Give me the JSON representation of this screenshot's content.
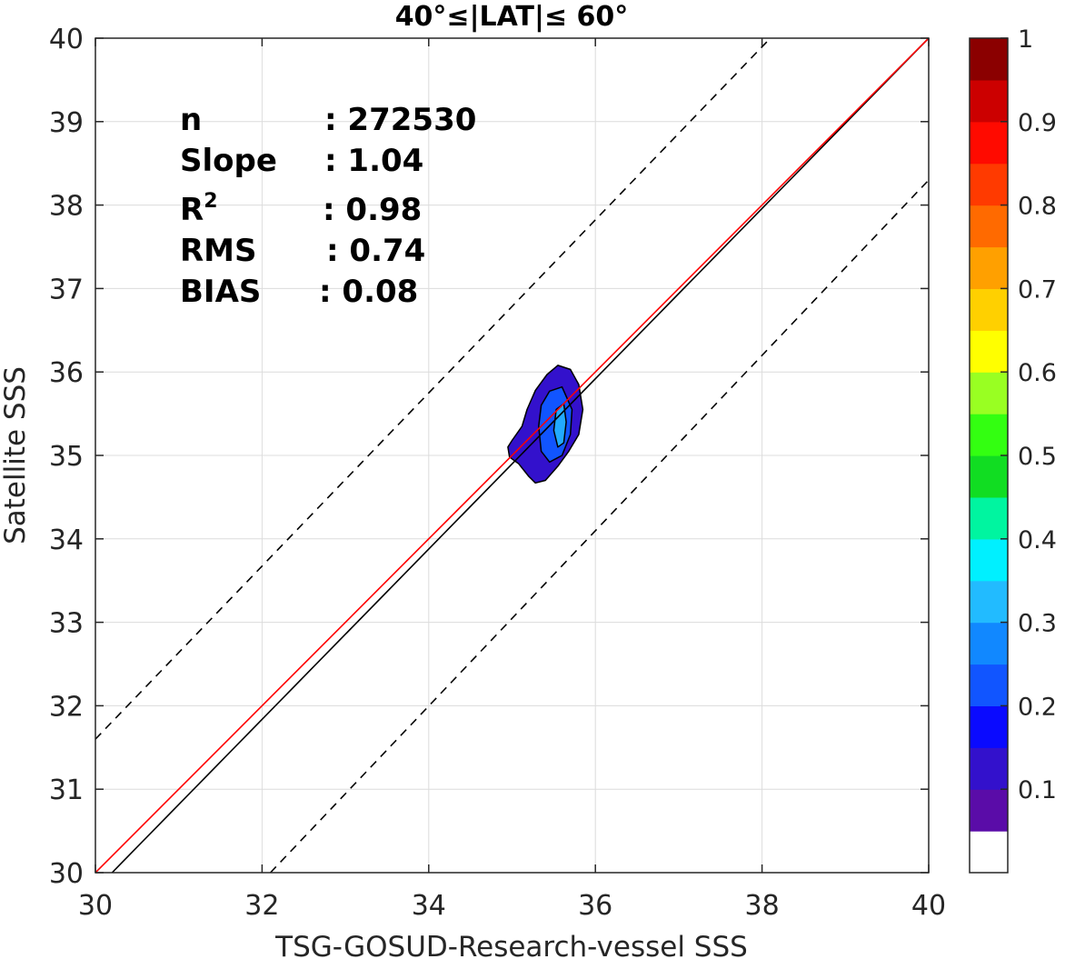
{
  "chart_data": {
    "type": "contour",
    "title": "40°≤|LAT|≤ 60°",
    "xlabel": "TSG-GOSUD-Research-vessel SSS",
    "ylabel": "Satellite SSS",
    "xlim": [
      30,
      40
    ],
    "ylim": [
      30,
      40
    ],
    "xticks": [
      "30",
      "32",
      "34",
      "36",
      "38",
      "40"
    ],
    "yticks": [
      "30",
      "31",
      "32",
      "33",
      "34",
      "35",
      "36",
      "37",
      "38",
      "39",
      "40"
    ],
    "grid": true,
    "stats": [
      {
        "label": "n",
        "value": ": 272530"
      },
      {
        "label": "Slope",
        "value": ": 1.04"
      },
      {
        "label": "R",
        "sup": "2",
        "value": ": 0.98"
      },
      {
        "label": "RMS",
        "value": ": 0.74"
      },
      {
        "label": "BIAS",
        "value": ": 0.08"
      }
    ],
    "lines": [
      {
        "name": "one-to-one",
        "color": "#000000",
        "style": "solid",
        "points": [
          [
            30.2,
            30
          ],
          [
            40,
            40
          ]
        ]
      },
      {
        "name": "regression",
        "color": "#ff0000",
        "style": "solid",
        "points": [
          [
            30,
            30
          ],
          [
            40,
            40
          ]
        ]
      },
      {
        "name": "upper-bound",
        "color": "#000000",
        "style": "dashed",
        "points": [
          [
            30,
            31.6
          ],
          [
            38.1,
            40
          ]
        ]
      },
      {
        "name": "lower-bound",
        "color": "#000000",
        "style": "dashed",
        "points": [
          [
            32.1,
            30
          ],
          [
            40,
            38.3
          ]
        ]
      }
    ],
    "contour_levels": [
      {
        "level": 0.05,
        "color": "#3311cc",
        "polygon": [
          [
            34.95,
            35.1
          ],
          [
            35.0,
            35.18
          ],
          [
            35.12,
            35.35
          ],
          [
            35.18,
            35.55
          ],
          [
            35.28,
            35.78
          ],
          [
            35.42,
            35.97
          ],
          [
            35.55,
            36.08
          ],
          [
            35.7,
            36.03
          ],
          [
            35.8,
            35.85
          ],
          [
            35.85,
            35.55
          ],
          [
            35.8,
            35.25
          ],
          [
            35.68,
            35.05
          ],
          [
            35.55,
            34.87
          ],
          [
            35.4,
            34.7
          ],
          [
            35.28,
            34.67
          ],
          [
            35.2,
            34.75
          ],
          [
            35.08,
            34.9
          ],
          [
            34.97,
            34.98
          ]
        ]
      },
      {
        "level": 0.2,
        "color": "#1155ff",
        "polygon": [
          [
            35.32,
            35.35
          ],
          [
            35.35,
            35.6
          ],
          [
            35.45,
            35.77
          ],
          [
            35.6,
            35.82
          ],
          [
            35.72,
            35.55
          ],
          [
            35.7,
            35.25
          ],
          [
            35.6,
            35.0
          ],
          [
            35.45,
            34.92
          ],
          [
            35.35,
            35.05
          ]
        ]
      },
      {
        "level": 0.3,
        "color": "#22aaff",
        "polygon": [
          [
            35.5,
            35.3
          ],
          [
            35.53,
            35.55
          ],
          [
            35.62,
            35.62
          ],
          [
            35.65,
            35.4
          ],
          [
            35.62,
            35.15
          ],
          [
            35.55,
            35.1
          ]
        ]
      }
    ],
    "colorbar": {
      "range": [
        0,
        1
      ],
      "ticks": [
        "0.1",
        "0.2",
        "0.3",
        "0.4",
        "0.5",
        "0.6",
        "0.7",
        "0.8",
        "0.9",
        "1"
      ],
      "colors": [
        "#ffffff",
        "#5a0ca8",
        "#3311cc",
        "#0a0aff",
        "#1155ff",
        "#1188ff",
        "#22bbff",
        "#00f0ff",
        "#00f5a0",
        "#11dd22",
        "#33ff11",
        "#99ff22",
        "#ffff00",
        "#ffd000",
        "#ffa000",
        "#ff6a00",
        "#ff3a00",
        "#ff0a00",
        "#cc0000",
        "#8b0000"
      ]
    }
  }
}
